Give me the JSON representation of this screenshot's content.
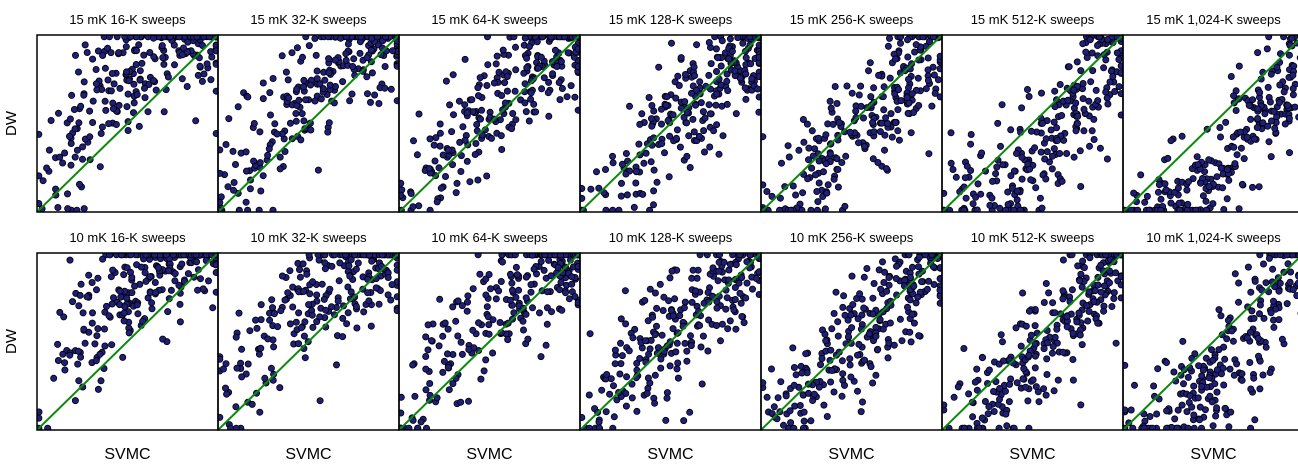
{
  "figure": {
    "row_labels": [
      "DW",
      "DW"
    ],
    "x_label": "SVMC",
    "colors": {
      "point_fill": "#1f1f7a",
      "point_stroke": "#000000",
      "diagonal": "#0a8a0a",
      "frame": "#000000"
    }
  },
  "chart_data": [
    {
      "type": "scatter",
      "title": "15 mK 16-K sweeps",
      "xlabel": "",
      "ylabel": "DW",
      "xlim": [
        0,
        1
      ],
      "ylim": [
        0,
        1
      ],
      "grid": false,
      "reference_line": "y = x",
      "n_points": 260,
      "spread": 0.16,
      "bias": 0.3,
      "seed": 11
    },
    {
      "type": "scatter",
      "title": "15 mK 32-K sweeps",
      "xlabel": "",
      "ylabel": "",
      "xlim": [
        0,
        1
      ],
      "ylim": [
        0,
        1
      ],
      "grid": false,
      "reference_line": "y = x",
      "n_points": 260,
      "spread": 0.16,
      "bias": 0.2,
      "seed": 12
    },
    {
      "type": "scatter",
      "title": "15 mK 64-K sweeps",
      "xlabel": "",
      "ylabel": "",
      "xlim": [
        0,
        1
      ],
      "ylim": [
        0,
        1
      ],
      "grid": false,
      "reference_line": "y = x",
      "n_points": 260,
      "spread": 0.15,
      "bias": 0.1,
      "seed": 13
    },
    {
      "type": "scatter",
      "title": "15 mK 128-K sweeps",
      "xlabel": "",
      "ylabel": "",
      "xlim": [
        0,
        1
      ],
      "ylim": [
        0,
        1
      ],
      "grid": false,
      "reference_line": "y = x",
      "n_points": 260,
      "spread": 0.14,
      "bias": 0.0,
      "seed": 14
    },
    {
      "type": "scatter",
      "title": "15 mK 256-K sweeps",
      "xlabel": "",
      "ylabel": "",
      "xlim": [
        0,
        1
      ],
      "ylim": [
        0,
        1
      ],
      "grid": false,
      "reference_line": "y = x",
      "n_points": 260,
      "spread": 0.14,
      "bias": -0.1,
      "seed": 15
    },
    {
      "type": "scatter",
      "title": "15 mK 512-K sweeps",
      "xlabel": "",
      "ylabel": "",
      "xlim": [
        0,
        1
      ],
      "ylim": [
        0,
        1
      ],
      "grid": false,
      "reference_line": "y = x",
      "n_points": 260,
      "spread": 0.15,
      "bias": -0.22,
      "seed": 16
    },
    {
      "type": "scatter",
      "title": "15 mK 1,024-K sweeps",
      "xlabel": "",
      "ylabel": "",
      "xlim": [
        0,
        1
      ],
      "ylim": [
        0,
        1
      ],
      "grid": false,
      "reference_line": "y = x",
      "n_points": 260,
      "spread": 0.15,
      "bias": -0.3,
      "seed": 17
    },
    {
      "type": "scatter",
      "title": "10 mK 16-K sweeps",
      "xlabel": "SVMC",
      "ylabel": "DW",
      "xlim": [
        0,
        1
      ],
      "ylim": [
        0,
        1
      ],
      "grid": false,
      "reference_line": "y = x",
      "n_points": 260,
      "spread": 0.17,
      "bias": 0.32,
      "seed": 21
    },
    {
      "type": "scatter",
      "title": "10 mK 32-K sweeps",
      "xlabel": "SVMC",
      "ylabel": "",
      "xlim": [
        0,
        1
      ],
      "ylim": [
        0,
        1
      ],
      "grid": false,
      "reference_line": "y = x",
      "n_points": 260,
      "spread": 0.17,
      "bias": 0.24,
      "seed": 22
    },
    {
      "type": "scatter",
      "title": "10 mK 64-K sweeps",
      "xlabel": "SVMC",
      "ylabel": "",
      "xlim": [
        0,
        1
      ],
      "ylim": [
        0,
        1
      ],
      "grid": false,
      "reference_line": "y = x",
      "n_points": 260,
      "spread": 0.16,
      "bias": 0.14,
      "seed": 23
    },
    {
      "type": "scatter",
      "title": "10 mK 128-K sweeps",
      "xlabel": "SVMC",
      "ylabel": "",
      "xlim": [
        0,
        1
      ],
      "ylim": [
        0,
        1
      ],
      "grid": false,
      "reference_line": "y = x",
      "n_points": 260,
      "spread": 0.15,
      "bias": 0.05,
      "seed": 24
    },
    {
      "type": "scatter",
      "title": "10 mK 256-K sweeps",
      "xlabel": "SVMC",
      "ylabel": "",
      "xlim": [
        0,
        1
      ],
      "ylim": [
        0,
        1
      ],
      "grid": false,
      "reference_line": "y = x",
      "n_points": 260,
      "spread": 0.15,
      "bias": -0.04,
      "seed": 25
    },
    {
      "type": "scatter",
      "title": "10 mK 512-K sweeps",
      "xlabel": "SVMC",
      "ylabel": "",
      "xlim": [
        0,
        1
      ],
      "ylim": [
        0,
        1
      ],
      "grid": false,
      "reference_line": "y = x",
      "n_points": 260,
      "spread": 0.15,
      "bias": -0.12,
      "seed": 26
    },
    {
      "type": "scatter",
      "title": "10 mK 1,024-K sweeps",
      "xlabel": "SVMC",
      "ylabel": "",
      "xlim": [
        0,
        1
      ],
      "ylim": [
        0,
        1
      ],
      "grid": false,
      "reference_line": "y = x",
      "n_points": 260,
      "spread": 0.15,
      "bias": -0.2,
      "seed": 27
    }
  ]
}
